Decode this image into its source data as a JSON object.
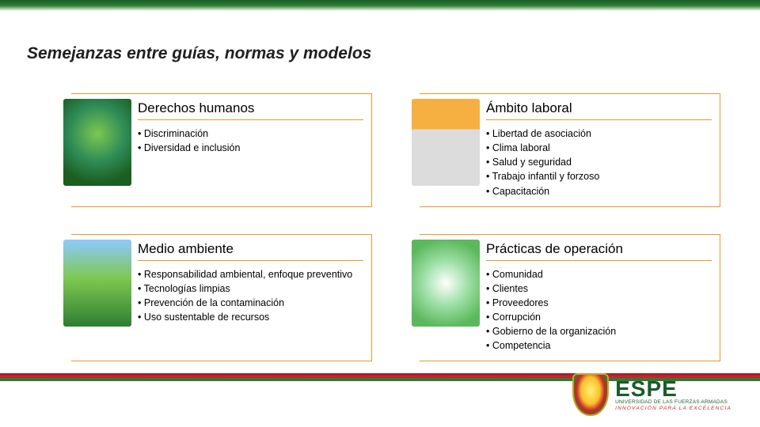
{
  "slide": {
    "title": "Semejanzas entre guías, normas y modelos"
  },
  "cards": [
    {
      "title": "Derechos humanos",
      "items": [
        "Discriminación",
        "Diversidad e inclusión"
      ]
    },
    {
      "title": "Ámbito laboral",
      "items": [
        "Libertad de asociación",
        "Clima laboral",
        "Salud y seguridad",
        "Trabajo infantil y forzoso",
        "Capacitación"
      ]
    },
    {
      "title": "Medio ambiente",
      "items": [
        "Responsabilidad ambiental, enfoque preventivo",
        "Tecnologías limpias",
        "Prevención de la contaminación",
        "Uso sustentable de recursos"
      ]
    },
    {
      "title": "Prácticas de operación",
      "items": [
        "Comunidad",
        "Clientes",
        "Proveedores",
        "Corrupción",
        "Gobierno de la organización",
        "Competencia"
      ]
    }
  ],
  "logo": {
    "name": "ESPE",
    "subtitle": "UNIVERSIDAD DE LAS FUERZAS ARMADAS",
    "tagline": "INNOVACIÓN PARA LA EXCELENCIA"
  },
  "colors": {
    "card_border": "#e49a2b",
    "green_dark": "#1a5c2a",
    "red": "#c62828"
  }
}
